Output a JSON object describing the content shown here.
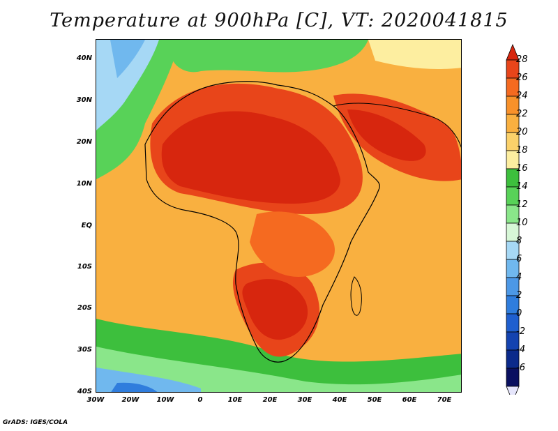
{
  "title": "Temperature at 900hPa [C], VT: 2020041815",
  "credit": "GrADS: IGES/COLA",
  "map": {
    "variable": "Temperature at 900hPa",
    "units": "C",
    "valid_time": "2020041815",
    "lon_range": [
      -30,
      75
    ],
    "lat_range": [
      -40,
      45
    ],
    "lat_ticks": [
      "40N",
      "30N",
      "20N",
      "10N",
      "EQ",
      "10S",
      "20S",
      "30S",
      "40S"
    ],
    "lon_ticks": [
      "30W",
      "20W",
      "10W",
      "0",
      "10E",
      "20E",
      "30E",
      "40E",
      "50E",
      "60E",
      "70E"
    ]
  },
  "colorbar": {
    "labels": [
      "28",
      "26",
      "24",
      "22",
      "20",
      "18",
      "16",
      "14",
      "12",
      "10",
      "8",
      "6",
      "4",
      "2",
      "0",
      "-2",
      "-4",
      "-6"
    ],
    "colors": [
      "#d7260e",
      "#e8451a",
      "#f56a20",
      "#f8912a",
      "#f9b040",
      "#fbd16a",
      "#fdeea0",
      "#3dbf3d",
      "#58d258",
      "#8ae68a",
      "#d7f7d7",
      "#a6d8f5",
      "#70b8ee",
      "#4c98e6",
      "#2f7ddd",
      "#1f5fcf",
      "#1443b0",
      "#0b2a8b",
      "#0a1060",
      "#e6e6fc"
    ]
  }
}
